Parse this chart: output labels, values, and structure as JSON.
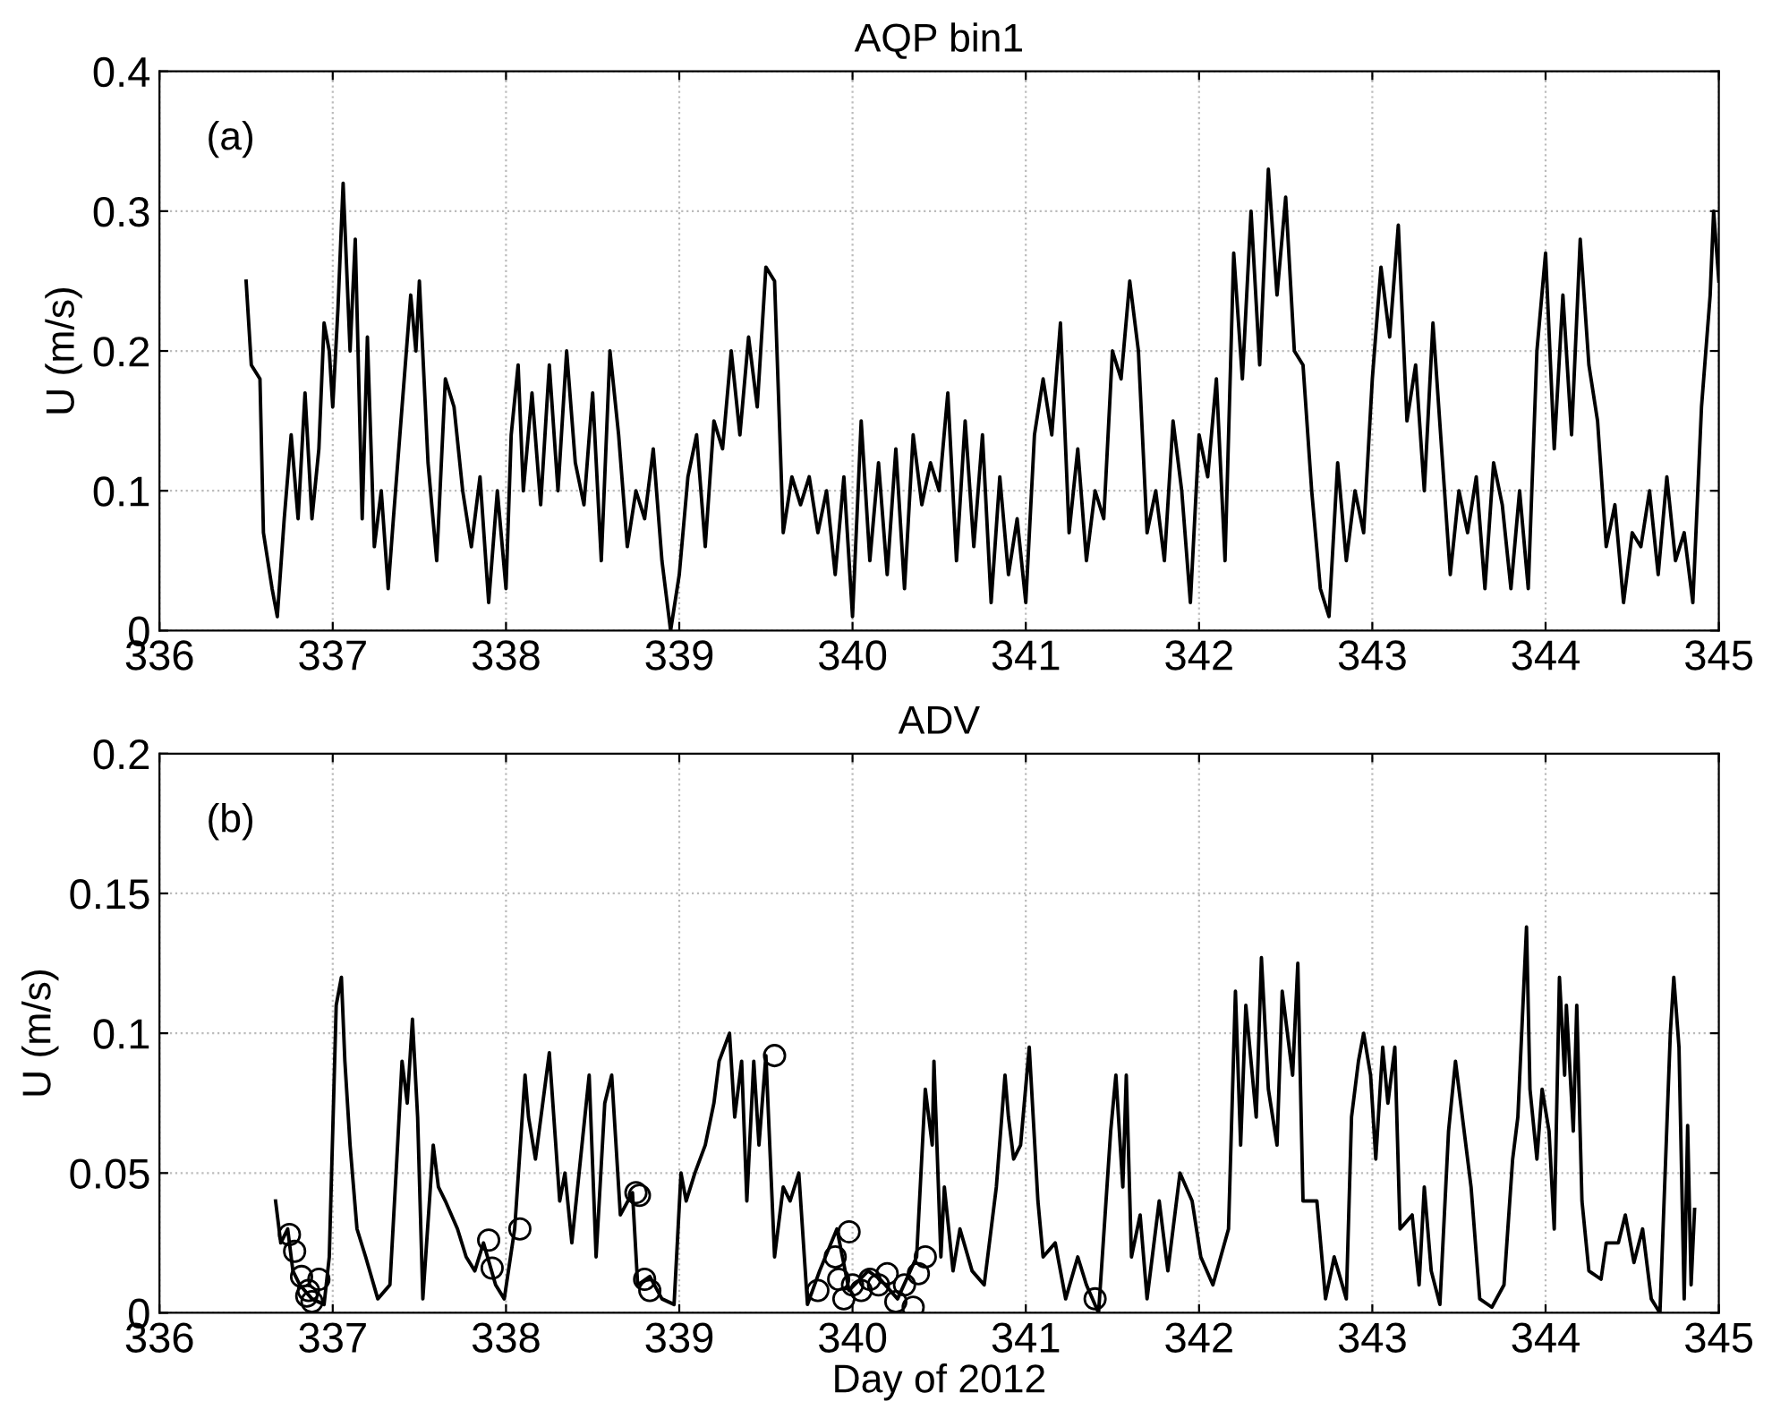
{
  "chart_data": [
    {
      "type": "line",
      "title": "AQP bin1",
      "ylabel": "U (m/s)",
      "annotations": [
        "(a)"
      ],
      "xlim": [
        336,
        345
      ],
      "xticks": [
        336,
        337,
        338,
        339,
        340,
        341,
        342,
        343,
        344,
        345
      ],
      "ylim": [
        0,
        0.4
      ],
      "yticks": [
        0,
        0.1,
        0.2,
        0.3,
        0.4
      ],
      "grid": true,
      "legend": false,
      "series": [
        {
          "color": "#000000",
          "x": [
            336.5,
            336.53,
            336.58,
            336.6,
            336.65,
            336.68,
            336.72,
            336.76,
            336.8,
            336.84,
            336.88,
            336.92,
            336.95,
            336.98,
            337.0,
            337.03,
            337.06,
            337.1,
            337.13,
            337.17,
            337.2,
            337.24,
            337.28,
            337.32,
            337.35,
            337.4,
            337.45,
            337.48,
            337.5,
            337.55,
            337.6,
            337.65,
            337.7,
            337.75,
            337.8,
            337.85,
            337.9,
            337.95,
            338.0,
            338.03,
            338.07,
            338.1,
            338.15,
            338.2,
            338.25,
            338.3,
            338.35,
            338.4,
            338.45,
            338.5,
            338.55,
            338.6,
            338.65,
            338.7,
            338.75,
            338.8,
            338.85,
            338.9,
            338.95,
            339.0,
            339.05,
            339.1,
            339.15,
            339.2,
            339.25,
            339.3,
            339.35,
            339.4,
            339.45,
            339.5,
            339.55,
            339.6,
            339.65,
            339.7,
            339.75,
            339.8,
            339.85,
            339.9,
            339.95,
            340.0,
            340.05,
            340.1,
            340.15,
            340.2,
            340.25,
            340.3,
            340.35,
            340.4,
            340.45,
            340.5,
            340.55,
            340.6,
            340.65,
            340.7,
            340.75,
            340.8,
            340.85,
            340.9,
            340.95,
            341.0,
            341.05,
            341.1,
            341.15,
            341.2,
            341.25,
            341.3,
            341.35,
            341.4,
            341.45,
            341.5,
            341.55,
            341.6,
            341.65,
            341.7,
            341.75,
            341.8,
            341.85,
            341.9,
            341.95,
            342.0,
            342.05,
            342.1,
            342.15,
            342.2,
            342.25,
            342.3,
            342.35,
            342.4,
            342.45,
            342.5,
            342.55,
            342.6,
            342.65,
            342.7,
            342.75,
            342.8,
            342.85,
            342.9,
            342.95,
            343.0,
            343.05,
            343.1,
            343.15,
            343.2,
            343.25,
            343.3,
            343.35,
            343.4,
            343.45,
            343.5,
            343.55,
            343.6,
            343.65,
            343.7,
            343.75,
            343.8,
            343.85,
            343.9,
            343.95,
            344.0,
            344.05,
            344.1,
            344.15,
            344.2,
            344.25,
            344.3,
            344.35,
            344.4,
            344.45,
            344.5,
            344.55,
            344.6,
            344.65,
            344.7,
            344.75,
            344.8,
            344.85,
            344.9,
            344.95,
            344.97,
            345.0
          ],
          "values": [
            0.25,
            0.19,
            0.18,
            0.07,
            0.03,
            0.01,
            0.08,
            0.14,
            0.08,
            0.17,
            0.08,
            0.13,
            0.22,
            0.2,
            0.16,
            0.23,
            0.32,
            0.2,
            0.28,
            0.08,
            0.21,
            0.06,
            0.1,
            0.03,
            0.08,
            0.16,
            0.24,
            0.2,
            0.25,
            0.12,
            0.05,
            0.18,
            0.16,
            0.1,
            0.06,
            0.11,
            0.02,
            0.1,
            0.03,
            0.14,
            0.19,
            0.1,
            0.17,
            0.09,
            0.19,
            0.1,
            0.2,
            0.12,
            0.09,
            0.17,
            0.05,
            0.2,
            0.14,
            0.06,
            0.1,
            0.08,
            0.13,
            0.05,
            0.0,
            0.04,
            0.11,
            0.14,
            0.06,
            0.15,
            0.13,
            0.2,
            0.14,
            0.21,
            0.16,
            0.26,
            0.25,
            0.07,
            0.11,
            0.09,
            0.11,
            0.07,
            0.1,
            0.04,
            0.11,
            0.01,
            0.15,
            0.05,
            0.12,
            0.04,
            0.13,
            0.03,
            0.14,
            0.09,
            0.12,
            0.1,
            0.17,
            0.05,
            0.15,
            0.06,
            0.14,
            0.02,
            0.11,
            0.04,
            0.08,
            0.02,
            0.14,
            0.18,
            0.14,
            0.22,
            0.07,
            0.13,
            0.05,
            0.1,
            0.08,
            0.2,
            0.18,
            0.25,
            0.2,
            0.07,
            0.1,
            0.05,
            0.15,
            0.1,
            0.02,
            0.14,
            0.11,
            0.18,
            0.05,
            0.27,
            0.18,
            0.3,
            0.19,
            0.33,
            0.24,
            0.31,
            0.2,
            0.19,
            0.1,
            0.03,
            0.01,
            0.12,
            0.05,
            0.1,
            0.07,
            0.18,
            0.26,
            0.21,
            0.29,
            0.15,
            0.19,
            0.1,
            0.22,
            0.13,
            0.04,
            0.1,
            0.07,
            0.11,
            0.03,
            0.12,
            0.09,
            0.03,
            0.1,
            0.03,
            0.2,
            0.27,
            0.13,
            0.24,
            0.14,
            0.28,
            0.19,
            0.15,
            0.06,
            0.09,
            0.02,
            0.07,
            0.06,
            0.1,
            0.04,
            0.11,
            0.05,
            0.07,
            0.02,
            0.16,
            0.24,
            0.3,
            0.25
          ]
        }
      ]
    },
    {
      "type": "line",
      "title": "ADV",
      "xlabel": "Day of 2012",
      "ylabel": "U (m/s)",
      "annotations": [
        "(b)"
      ],
      "xlim": [
        336,
        345
      ],
      "xticks": [
        336,
        337,
        338,
        339,
        340,
        341,
        342,
        343,
        344,
        345
      ],
      "ylim": [
        0,
        0.2
      ],
      "yticks": [
        0,
        0.05,
        0.1,
        0.15,
        0.2
      ],
      "grid": true,
      "legend": false,
      "series": [
        {
          "color": "#000000",
          "x": [
            336.67,
            336.7,
            336.74,
            336.77,
            336.81,
            336.88,
            336.95,
            336.98,
            337.02,
            337.05,
            337.07,
            337.1,
            337.14,
            337.19,
            337.26,
            337.33,
            337.37,
            337.4,
            337.43,
            337.46,
            337.49,
            337.52,
            337.58,
            337.61,
            337.65,
            337.72,
            337.77,
            337.82,
            337.87,
            337.94,
            337.99,
            338.05,
            338.11,
            338.13,
            338.17,
            338.25,
            338.31,
            338.34,
            338.38,
            338.43,
            338.48,
            338.52,
            338.57,
            338.61,
            338.66,
            338.73,
            338.76,
            338.83,
            338.9,
            338.97,
            339.01,
            339.04,
            339.09,
            339.15,
            339.2,
            339.23,
            339.29,
            339.32,
            339.36,
            339.39,
            339.43,
            339.46,
            339.5,
            339.55,
            339.6,
            339.64,
            339.69,
            339.74,
            339.81,
            339.91,
            339.98,
            340.09,
            340.16,
            340.26,
            340.37,
            340.42,
            340.46,
            340.47,
            340.51,
            340.53,
            340.58,
            340.62,
            340.69,
            340.76,
            340.83,
            340.88,
            340.9,
            340.93,
            340.97,
            341.02,
            341.07,
            341.1,
            341.17,
            341.23,
            341.3,
            341.35,
            341.42,
            341.49,
            341.52,
            341.56,
            341.58,
            341.61,
            341.66,
            341.7,
            341.77,
            341.82,
            341.89,
            341.96,
            342.01,
            342.08,
            342.17,
            342.21,
            342.24,
            342.27,
            342.33,
            342.36,
            342.4,
            342.45,
            342.48,
            342.54,
            342.57,
            342.6,
            342.68,
            342.73,
            342.78,
            342.85,
            342.88,
            342.92,
            342.95,
            342.99,
            343.02,
            343.06,
            343.09,
            343.13,
            343.16,
            343.23,
            343.27,
            343.3,
            343.34,
            343.39,
            343.44,
            343.48,
            343.51,
            343.57,
            343.62,
            343.69,
            343.76,
            343.81,
            343.84,
            343.89,
            343.91,
            343.95,
            343.98,
            344.02,
            344.05,
            344.08,
            344.11,
            344.12,
            344.16,
            344.18,
            344.21,
            344.25,
            344.32,
            344.35,
            344.42,
            344.46,
            344.51,
            344.56,
            344.61,
            344.66,
            344.72,
            344.74,
            344.77,
            344.8,
            344.82,
            344.84,
            344.86
          ],
          "values": [
            0.04,
            0.025,
            0.03,
            0.015,
            0.01,
            0.005,
            0.003,
            0.02,
            0.11,
            0.12,
            0.09,
            0.06,
            0.03,
            0.02,
            0.005,
            0.01,
            0.055,
            0.09,
            0.075,
            0.105,
            0.07,
            0.005,
            0.06,
            0.045,
            0.04,
            0.03,
            0.02,
            0.015,
            0.025,
            0.01,
            0.005,
            0.03,
            0.085,
            0.07,
            0.055,
            0.093,
            0.04,
            0.05,
            0.025,
            0.055,
            0.085,
            0.02,
            0.075,
            0.085,
            0.035,
            0.043,
            0.01,
            0.013,
            0.005,
            0.003,
            0.05,
            0.04,
            0.05,
            0.06,
            0.075,
            0.09,
            0.1,
            0.07,
            0.09,
            0.04,
            0.09,
            0.06,
            0.092,
            0.02,
            0.045,
            0.04,
            0.05,
            0.003,
            0.015,
            0.03,
            0.008,
            0.015,
            0.012,
            0.005,
            0.02,
            0.08,
            0.06,
            0.09,
            0.02,
            0.045,
            0.015,
            0.03,
            0.015,
            0.01,
            0.045,
            0.085,
            0.07,
            0.055,
            0.06,
            0.095,
            0.04,
            0.02,
            0.025,
            0.005,
            0.02,
            0.01,
            0.0,
            0.065,
            0.085,
            0.045,
            0.085,
            0.02,
            0.035,
            0.005,
            0.04,
            0.015,
            0.05,
            0.04,
            0.02,
            0.01,
            0.03,
            0.115,
            0.06,
            0.11,
            0.07,
            0.127,
            0.08,
            0.06,
            0.115,
            0.085,
            0.125,
            0.04,
            0.04,
            0.005,
            0.02,
            0.005,
            0.07,
            0.09,
            0.1,
            0.085,
            0.055,
            0.095,
            0.075,
            0.095,
            0.03,
            0.035,
            0.01,
            0.045,
            0.015,
            0.003,
            0.065,
            0.09,
            0.075,
            0.045,
            0.005,
            0.002,
            0.01,
            0.055,
            0.07,
            0.138,
            0.08,
            0.055,
            0.08,
            0.065,
            0.03,
            0.12,
            0.085,
            0.11,
            0.065,
            0.11,
            0.04,
            0.015,
            0.012,
            0.025,
            0.025,
            0.035,
            0.018,
            0.03,
            0.005,
            0.0,
            0.1,
            0.12,
            0.095,
            0.005,
            0.067,
            0.01,
            0.037
          ]
        },
        {
          "type": "scatter",
          "marker": "circle",
          "color": "#000000",
          "x": [
            336.75,
            336.78,
            336.82,
            336.85,
            336.88,
            336.92,
            336.86,
            337.9,
            337.92,
            338.08,
            338.75,
            338.77,
            338.8,
            338.83,
            339.55,
            339.8,
            339.9,
            339.92,
            339.95,
            339.98,
            340.0,
            340.05,
            340.1,
            340.15,
            340.2,
            340.25,
            340.3,
            340.35,
            340.38,
            340.42,
            341.4
          ],
          "values": [
            0.028,
            0.022,
            0.013,
            0.006,
            0.004,
            0.012,
            0.008,
            0.026,
            0.016,
            0.03,
            0.043,
            0.042,
            0.012,
            0.008,
            0.092,
            0.008,
            0.02,
            0.012,
            0.005,
            0.029,
            0.01,
            0.008,
            0.012,
            0.01,
            0.014,
            0.004,
            0.01,
            0.002,
            0.014,
            0.02,
            0.005
          ]
        }
      ]
    }
  ]
}
